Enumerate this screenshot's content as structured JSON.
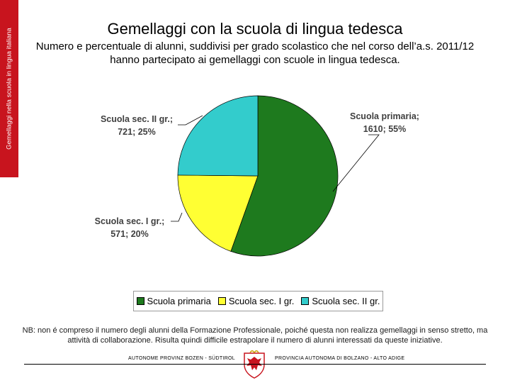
{
  "side_label": "Gemellaggi nella scuola in lingua italiana",
  "colors": {
    "brand_red": "#c8141e",
    "primaria": "#1e7a1e",
    "sec1": "#ffff33",
    "sec2": "#33cccc"
  },
  "chart_data": {
    "type": "pie",
    "title": "Gemellaggi con la scuola di lingua tedesca",
    "subtitle": "Numero e percentuale di alunni, suddivisi per grado scolastico che nel corso dell’a.s. 2011/12 hanno partecipato ai gemellaggi con scuole in lingua tedesca.",
    "slices": [
      {
        "name": "Scuola primaria",
        "value": 1610,
        "percent": 55,
        "label_name": "Scuola primaria;",
        "label_value": "1610; 55%",
        "color": "#1e7a1e"
      },
      {
        "name": "Scuola sec. I gr.",
        "value": 571,
        "percent": 20,
        "label_name": "Scuola sec. I gr.;",
        "label_value": "571; 20%",
        "color": "#ffff33"
      },
      {
        "name": "Scuola sec. II gr.",
        "value": 721,
        "percent": 25,
        "label_name": "Scuola sec. II gr.;",
        "label_value": "721; 25%",
        "color": "#33cccc"
      }
    ],
    "legend": [
      "Scuola primaria",
      "Scuola sec. I gr.",
      "Scuola sec. II gr."
    ],
    "legend_position": "bottom"
  },
  "note": "NB: non é compreso il numero degli alunni della Formazione Professionale, poiché questa non realizza gemellaggi in senso stretto, ma attività di collaborazione. Risulta quindi difficile estrapolare il numero di alunni interessati da queste iniziative.",
  "footer": {
    "left": "AUTONOME PROVINZ BOZEN - SÜDTIROL",
    "right": "PROVINCIA AUTONOMA DI BOLZANO - ALTO ADIGE"
  }
}
